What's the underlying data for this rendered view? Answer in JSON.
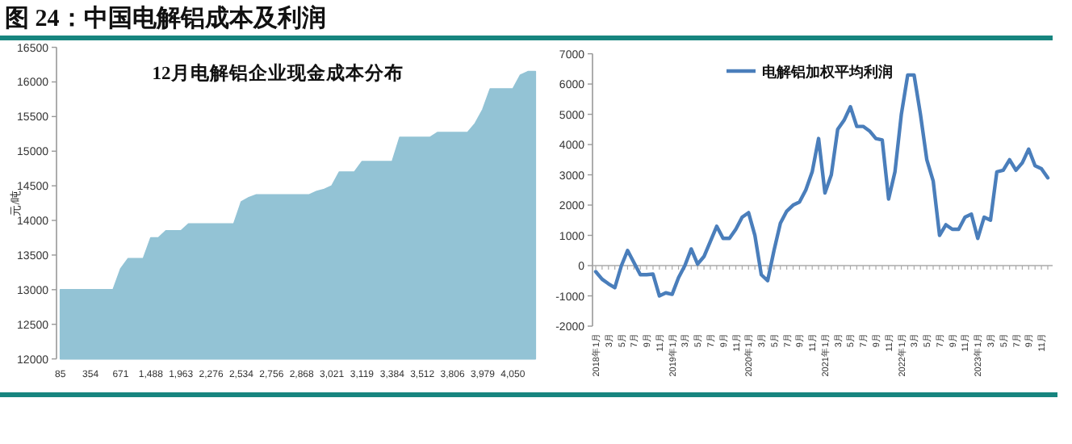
{
  "chart_data": [
    {
      "type": "area",
      "title": "12月电解铝企业现金成本分布",
      "ylabel": "元/吨",
      "annotations": [
        "图 24：中国电解铝成本及利润"
      ],
      "color": "#93c3d5",
      "ylim": [
        12000,
        16500
      ],
      "yticks": [
        12000,
        12500,
        13000,
        13500,
        14000,
        14500,
        15000,
        15500,
        16000,
        16500
      ],
      "categories": [
        "85",
        null,
        null,
        null,
        "354",
        null,
        null,
        null,
        "671",
        null,
        null,
        null,
        "1,488",
        null,
        null,
        null,
        "1,963",
        null,
        null,
        null,
        "2,276",
        null,
        null,
        null,
        "2,534",
        null,
        null,
        null,
        "2,756",
        null,
        null,
        null,
        "2,868",
        null,
        null,
        null,
        "3,021",
        null,
        null,
        null,
        "3,119",
        null,
        null,
        null,
        "3,384",
        null,
        null,
        null,
        "3,512",
        null,
        null,
        null,
        "3,806",
        null,
        null,
        null,
        "3,979",
        null,
        null,
        null,
        "4,050",
        null,
        null,
        null
      ],
      "values": [
        13000,
        13000,
        13000,
        13000,
        13000,
        13000,
        13000,
        13000,
        13300,
        13450,
        13450,
        13450,
        13750,
        13750,
        13850,
        13850,
        13850,
        13950,
        13950,
        13950,
        13950,
        13950,
        13950,
        13950,
        14270,
        14330,
        14370,
        14370,
        14370,
        14370,
        14370,
        14370,
        14370,
        14370,
        14420,
        14450,
        14500,
        14700,
        14700,
        14700,
        14850,
        14850,
        14850,
        14850,
        14850,
        15200,
        15200,
        15200,
        15200,
        15200,
        15270,
        15270,
        15270,
        15270,
        15270,
        15400,
        15600,
        15900,
        15900,
        15900,
        15900,
        16100,
        16150,
        16150
      ]
    },
    {
      "type": "line",
      "legend": "top",
      "ylim": [
        -2000,
        7000
      ],
      "yticks": [
        -2000,
        -1000,
        0,
        1000,
        2000,
        3000,
        4000,
        5000,
        6000,
        7000
      ],
      "categories": [
        "2018年1月",
        null,
        "3月",
        null,
        "5月",
        null,
        "7月",
        null,
        "9月",
        null,
        "11月",
        null,
        "2019年1月",
        null,
        "3月",
        null,
        "5月",
        null,
        "7月",
        null,
        "9月",
        null,
        "11月",
        null,
        "2020年1月",
        null,
        "3月",
        null,
        "5月",
        null,
        "7月",
        null,
        "9月",
        null,
        "11月",
        null,
        "2021年1月",
        null,
        "3月",
        null,
        "5月",
        null,
        "7月",
        null,
        "9月",
        null,
        "11月",
        null,
        "2022年1月",
        null,
        "3月",
        null,
        "5月",
        null,
        "7月",
        null,
        "9月",
        null,
        "11月",
        null,
        "2023年1月",
        null,
        "3月",
        null,
        "5月",
        null,
        "7月",
        null,
        "9月",
        null,
        "11月",
        null
      ],
      "series": [
        {
          "name": "电解铝加权平均利润",
          "color": "#4a7ebb",
          "values": [
            -200,
            -450,
            -600,
            -730,
            -20,
            500,
            100,
            -300,
            -300,
            -280,
            -1000,
            -900,
            -950,
            -400,
            0,
            550,
            50,
            300,
            800,
            1300,
            900,
            900,
            1200,
            1600,
            1750,
            1000,
            -300,
            -500,
            500,
            1400,
            1800,
            2000,
            2100,
            2500,
            3100,
            4200,
            2400,
            3000,
            4500,
            4800,
            5250,
            4600,
            4600,
            4450,
            4200,
            4150,
            2200,
            3100,
            5000,
            6300,
            6300,
            5000,
            3500,
            2800,
            1000,
            1350,
            1200,
            1200,
            1600,
            1700,
            900,
            1600,
            1500,
            3100,
            3150,
            3500,
            3150,
            3400,
            3850,
            3300,
            3200,
            2900
          ]
        }
      ]
    }
  ]
}
